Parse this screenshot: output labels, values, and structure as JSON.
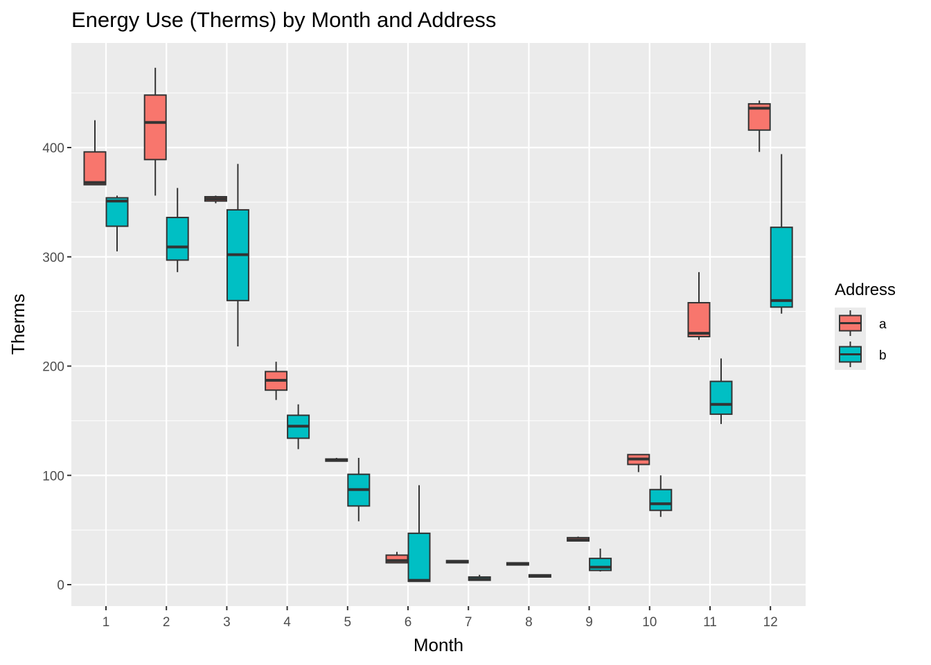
{
  "chart_data": {
    "type": "boxplot",
    "title": "Energy Use (Therms) by Month and Address",
    "xlabel": "Month",
    "ylabel": "Therms",
    "categories": [
      "1",
      "2",
      "3",
      "4",
      "5",
      "6",
      "7",
      "8",
      "9",
      "10",
      "11",
      "12"
    ],
    "ylim": [
      -20,
      490
    ],
    "yticks": [
      0,
      100,
      200,
      300,
      400
    ],
    "grid": true,
    "legend": {
      "title": "Address",
      "placement": "right"
    },
    "series": [
      {
        "name": "a",
        "color": "#F8766D",
        "boxes": [
          {
            "min": 366,
            "q1": 366,
            "median": 368,
            "q3": 396,
            "max": 425
          },
          {
            "min": 356,
            "q1": 389,
            "median": 423,
            "q3": 448,
            "max": 473
          },
          {
            "min": 349,
            "q1": 351,
            "median": 353,
            "q3": 355,
            "max": 356
          },
          {
            "min": 169,
            "q1": 178,
            "median": 187,
            "q3": 195,
            "max": 204
          },
          {
            "min": 113,
            "q1": 113,
            "median": 114,
            "q3": 115,
            "max": 116
          },
          {
            "min": 20,
            "q1": 20,
            "median": 22,
            "q3": 27,
            "max": 30
          },
          {
            "min": 20,
            "q1": 20,
            "median": 21,
            "q3": 22,
            "max": 22
          },
          {
            "min": 18,
            "q1": 18,
            "median": 19,
            "q3": 20,
            "max": 20
          },
          {
            "min": 40,
            "q1": 40,
            "median": 41,
            "q3": 43,
            "max": 44
          },
          {
            "min": 103,
            "q1": 110,
            "median": 115,
            "q3": 119,
            "max": 119
          },
          {
            "min": 224,
            "q1": 227,
            "median": 230,
            "q3": 258,
            "max": 286
          },
          {
            "min": 396,
            "q1": 416,
            "median": 436,
            "q3": 440,
            "max": 443
          }
        ]
      },
      {
        "name": "b",
        "color": "#00BFC4",
        "boxes": [
          {
            "min": 305,
            "q1": 328,
            "median": 351,
            "q3": 354,
            "max": 356
          },
          {
            "min": 286,
            "q1": 297,
            "median": 309,
            "q3": 336,
            "max": 363
          },
          {
            "min": 218,
            "q1": 260,
            "median": 302,
            "q3": 343,
            "max": 385
          },
          {
            "min": 124,
            "q1": 134,
            "median": 145,
            "q3": 155,
            "max": 165
          },
          {
            "min": 58,
            "q1": 72,
            "median": 87,
            "q3": 101,
            "max": 116
          },
          {
            "min": 3,
            "q1": 3,
            "median": 4,
            "q3": 47,
            "max": 91
          },
          {
            "min": 4,
            "q1": 4,
            "median": 5,
            "q3": 7,
            "max": 9
          },
          {
            "min": 7,
            "q1": 7,
            "median": 8,
            "q3": 9,
            "max": 9
          },
          {
            "min": 12,
            "q1": 13,
            "median": 16,
            "q3": 24,
            "max": 33
          },
          {
            "min": 62,
            "q1": 68,
            "median": 74,
            "q3": 87,
            "max": 100
          },
          {
            "min": 147,
            "q1": 156,
            "median": 165,
            "q3": 186,
            "max": 207
          },
          {
            "min": 248,
            "q1": 254,
            "median": 260,
            "q3": 327,
            "max": 394
          }
        ]
      }
    ]
  }
}
